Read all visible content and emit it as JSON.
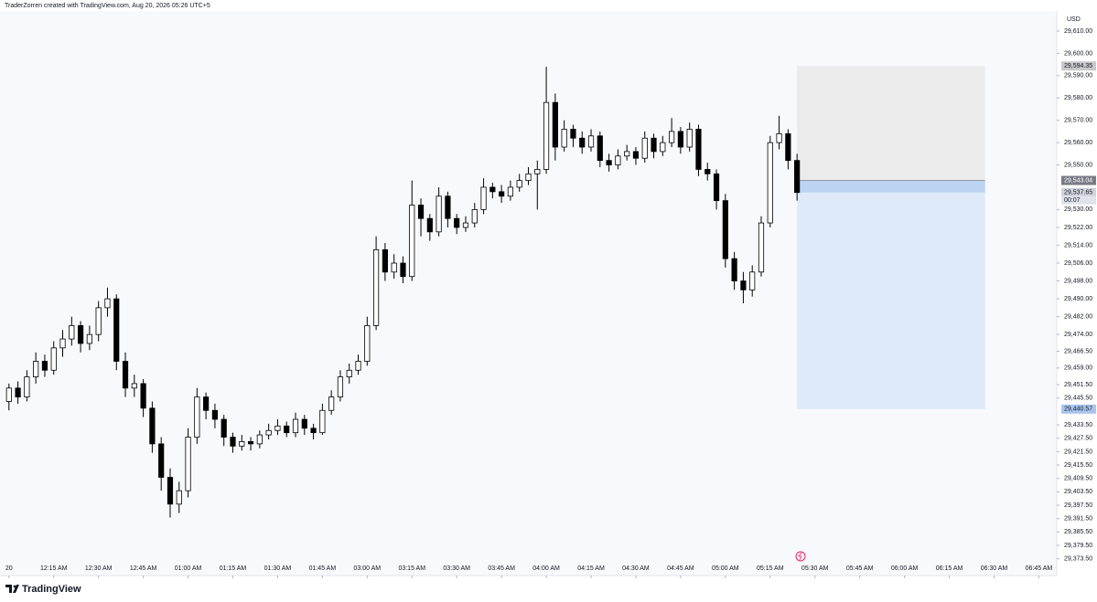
{
  "chart_data": {
    "type": "candlestick",
    "header": "TraderZorren created with TradingView.com, Aug 20, 2026 05:26 UTC+5",
    "brand": "TradingView",
    "currency": "USD",
    "up_color": "#ffffff",
    "down_color": "#000000",
    "outline_color": "#000000",
    "ylim": [
      29366,
      29619
    ],
    "xlim": [
      -1,
      117
    ],
    "grid": false,
    "yticks": [
      {
        "value": 29610,
        "label": "29,610.00"
      },
      {
        "value": 29600,
        "label": "29,600.00"
      },
      {
        "value": 29590,
        "label": "29,590.00"
      },
      {
        "value": 29580,
        "label": "29,580.00"
      },
      {
        "value": 29570,
        "label": "29,570.00"
      },
      {
        "value": 29560,
        "label": "29,560.00"
      },
      {
        "value": 29550,
        "label": "29,550.00"
      },
      {
        "value": 29530,
        "label": "29,530.00"
      },
      {
        "value": 29522,
        "label": "29,522.00"
      },
      {
        "value": 29514,
        "label": "29,514.00"
      },
      {
        "value": 29506,
        "label": "29,506.00"
      },
      {
        "value": 29498,
        "label": "29,498.00"
      },
      {
        "value": 29490,
        "label": "29,490.00"
      },
      {
        "value": 29482,
        "label": "29,482.00"
      },
      {
        "value": 29474,
        "label": "29,474.00"
      },
      {
        "value": 29466.5,
        "label": "29,466.50"
      },
      {
        "value": 29459,
        "label": "29,459.00"
      },
      {
        "value": 29451.5,
        "label": "29,451.50"
      },
      {
        "value": 29445.5,
        "label": "29,445.50"
      },
      {
        "value": 29433.5,
        "label": "29,433.50"
      },
      {
        "value": 29427.5,
        "label": "29,427.50"
      },
      {
        "value": 29421.5,
        "label": "29,421.50"
      },
      {
        "value": 29415.5,
        "label": "29,415.50"
      },
      {
        "value": 29409.5,
        "label": "29,409.50"
      },
      {
        "value": 29403.5,
        "label": "29,403.50"
      },
      {
        "value": 29397.5,
        "label": "29,397.50"
      },
      {
        "value": 29391.5,
        "label": "29,391.50"
      },
      {
        "value": 29385.5,
        "label": "29,385.50"
      },
      {
        "value": 29379.5,
        "label": "29,379.50"
      },
      {
        "value": 29373.5,
        "label": "29,373.50"
      }
    ],
    "xticks": [
      {
        "value": 0,
        "label": "20"
      },
      {
        "value": 5,
        "label": "12:15 AM"
      },
      {
        "value": 10,
        "label": "12:30 AM"
      },
      {
        "value": 15,
        "label": "12:45 AM"
      },
      {
        "value": 20,
        "label": "01:00 AM"
      },
      {
        "value": 25,
        "label": "01:15 AM"
      },
      {
        "value": 30,
        "label": "01:30 AM"
      },
      {
        "value": 35,
        "label": "01:45 AM"
      },
      {
        "value": 40,
        "label": "03:00 AM"
      },
      {
        "value": 45,
        "label": "03:15 AM"
      },
      {
        "value": 50,
        "label": "03:30 AM"
      },
      {
        "value": 55,
        "label": "03:45 AM"
      },
      {
        "value": 60,
        "label": "04:00 AM"
      },
      {
        "value": 65,
        "label": "04:15 AM"
      },
      {
        "value": 70,
        "label": "04:30 AM"
      },
      {
        "value": 75,
        "label": "04:45 AM"
      },
      {
        "value": 80,
        "label": "05:00 AM"
      },
      {
        "value": 85,
        "label": "05:15 AM"
      },
      {
        "value": 90,
        "label": "05:30 AM"
      },
      {
        "value": 95,
        "label": "05:45 AM"
      },
      {
        "value": 100,
        "label": "06:00 AM"
      },
      {
        "value": 105,
        "label": "06:15 AM"
      },
      {
        "value": 110,
        "label": "06:30 AM"
      },
      {
        "value": 115,
        "label": "06:45 AM"
      }
    ],
    "candles": [
      [
        29444,
        29452,
        29440,
        29450
      ],
      [
        29450,
        29453,
        29443,
        29446
      ],
      [
        29446,
        29458,
        29444,
        29455
      ],
      [
        29455,
        29466,
        29452,
        29462
      ],
      [
        29462,
        29465,
        29455,
        29458
      ],
      [
        29458,
        29471,
        29456,
        29468
      ],
      [
        29468,
        29476,
        29464,
        29472
      ],
      [
        29472,
        29482,
        29469,
        29478
      ],
      [
        29478,
        29480,
        29466,
        29470
      ],
      [
        29470,
        29478,
        29467,
        29474
      ],
      [
        29474,
        29489,
        29471,
        29486
      ],
      [
        29486,
        29495,
        29482,
        29490
      ],
      [
        29490,
        29492,
        29458,
        29462
      ],
      [
        29462,
        29466,
        29446,
        29450
      ],
      [
        29450,
        29456,
        29446,
        29452
      ],
      [
        29452,
        29454,
        29437,
        29441
      ],
      [
        29441,
        29444,
        29421,
        29425
      ],
      [
        29425,
        29428,
        29404,
        29410
      ],
      [
        29410,
        29414,
        29392,
        29398
      ],
      [
        29398,
        29408,
        29394,
        29404
      ],
      [
        29404,
        29432,
        29401,
        29428
      ],
      [
        29428,
        29450,
        29425,
        29446
      ],
      [
        29446,
        29448,
        29436,
        29440
      ],
      [
        29440,
        29443,
        29432,
        29436
      ],
      [
        29436,
        29438,
        29424,
        29428
      ],
      [
        29428,
        29430,
        29421,
        29424
      ],
      [
        29424,
        29429,
        29422,
        29426
      ],
      [
        29426,
        29428,
        29422,
        29425
      ],
      [
        29425,
        29431,
        29423,
        29429
      ],
      [
        29429,
        29434,
        29427,
        29431
      ],
      [
        29431,
        29436,
        29429,
        29433
      ],
      [
        29433,
        29435,
        29428,
        29430
      ],
      [
        29430,
        29439,
        29428,
        29436
      ],
      [
        29436,
        29438,
        29429,
        29432
      ],
      [
        29432,
        29434,
        29427,
        29430
      ],
      [
        29430,
        29443,
        29429,
        29440
      ],
      [
        29440,
        29449,
        29438,
        29446
      ],
      [
        29446,
        29458,
        29444,
        29455
      ],
      [
        29455,
        29461,
        29452,
        29458
      ],
      [
        29458,
        29465,
        29456,
        29462
      ],
      [
        29462,
        29482,
        29460,
        29478
      ],
      [
        29478,
        29518,
        29476,
        29512
      ],
      [
        29512,
        29515,
        29498,
        29502
      ],
      [
        29502,
        29510,
        29499,
        29506
      ],
      [
        29506,
        29509,
        29497,
        29500
      ],
      [
        29500,
        29543,
        29498,
        29532
      ],
      [
        29532,
        29535,
        29518,
        29526
      ],
      [
        29526,
        29528,
        29516,
        29520
      ],
      [
        29520,
        29540,
        29518,
        29536
      ],
      [
        29536,
        29538,
        29522,
        29526
      ],
      [
        29526,
        29528,
        29519,
        29522
      ],
      [
        29522,
        29527,
        29520,
        29524
      ],
      [
        29524,
        29533,
        29522,
        29530
      ],
      [
        29530,
        29544,
        29528,
        29540
      ],
      [
        29540,
        29542,
        29535,
        29538
      ],
      [
        29538,
        29541,
        29533,
        29536
      ],
      [
        29536,
        29543,
        29534,
        29540
      ],
      [
        29540,
        29546,
        29538,
        29543
      ],
      [
        29543,
        29549,
        29541,
        29546
      ],
      [
        29546,
        29552,
        29530,
        29548
      ],
      [
        29548,
        29594,
        29546,
        29578
      ],
      [
        29578,
        29582,
        29552,
        29558
      ],
      [
        29558,
        29570,
        29556,
        29566
      ],
      [
        29566,
        29568,
        29558,
        29562
      ],
      [
        29562,
        29565,
        29555,
        29558
      ],
      [
        29558,
        29566,
        29556,
        29563
      ],
      [
        29563,
        29565,
        29549,
        29552
      ],
      [
        29552,
        29555,
        29547,
        29550
      ],
      [
        29550,
        29557,
        29548,
        29554
      ],
      [
        29554,
        29559,
        29552,
        29556
      ],
      [
        29556,
        29558,
        29550,
        29553
      ],
      [
        29553,
        29565,
        29551,
        29562
      ],
      [
        29562,
        29564,
        29553,
        29556
      ],
      [
        29556,
        29563,
        29554,
        29560
      ],
      [
        29560,
        29571,
        29558,
        29565
      ],
      [
        29565,
        29567,
        29555,
        29558
      ],
      [
        29558,
        29569,
        29556,
        29566
      ],
      [
        29566,
        29568,
        29545,
        29548
      ],
      [
        29548,
        29551,
        29543,
        29546
      ],
      [
        29546,
        29548,
        29530,
        29534
      ],
      [
        29534,
        29537,
        29504,
        29508
      ],
      [
        29508,
        29511,
        29494,
        29498
      ],
      [
        29498,
        29502,
        29488,
        29494
      ],
      [
        29494,
        29505,
        29491,
        29502
      ],
      [
        29502,
        29527,
        29500,
        29524
      ],
      [
        29524,
        29563,
        29522,
        29560
      ],
      [
        29560,
        29572,
        29557,
        29564
      ],
      [
        29564,
        29566,
        29548,
        29552
      ],
      [
        29552,
        29555,
        29534,
        29537.65
      ]
    ],
    "position": {
      "start": 88,
      "end": 109,
      "stop": {
        "value": 29594.35,
        "label": "29,594.35"
      },
      "entry": {
        "value": 29543.04,
        "label": "29,543.04"
      },
      "target": {
        "value": 29440.57,
        "label": "29,440.57"
      }
    },
    "last_price": {
      "value": 29537.65,
      "label": "29,537.65"
    },
    "countdown": "00:07"
  }
}
